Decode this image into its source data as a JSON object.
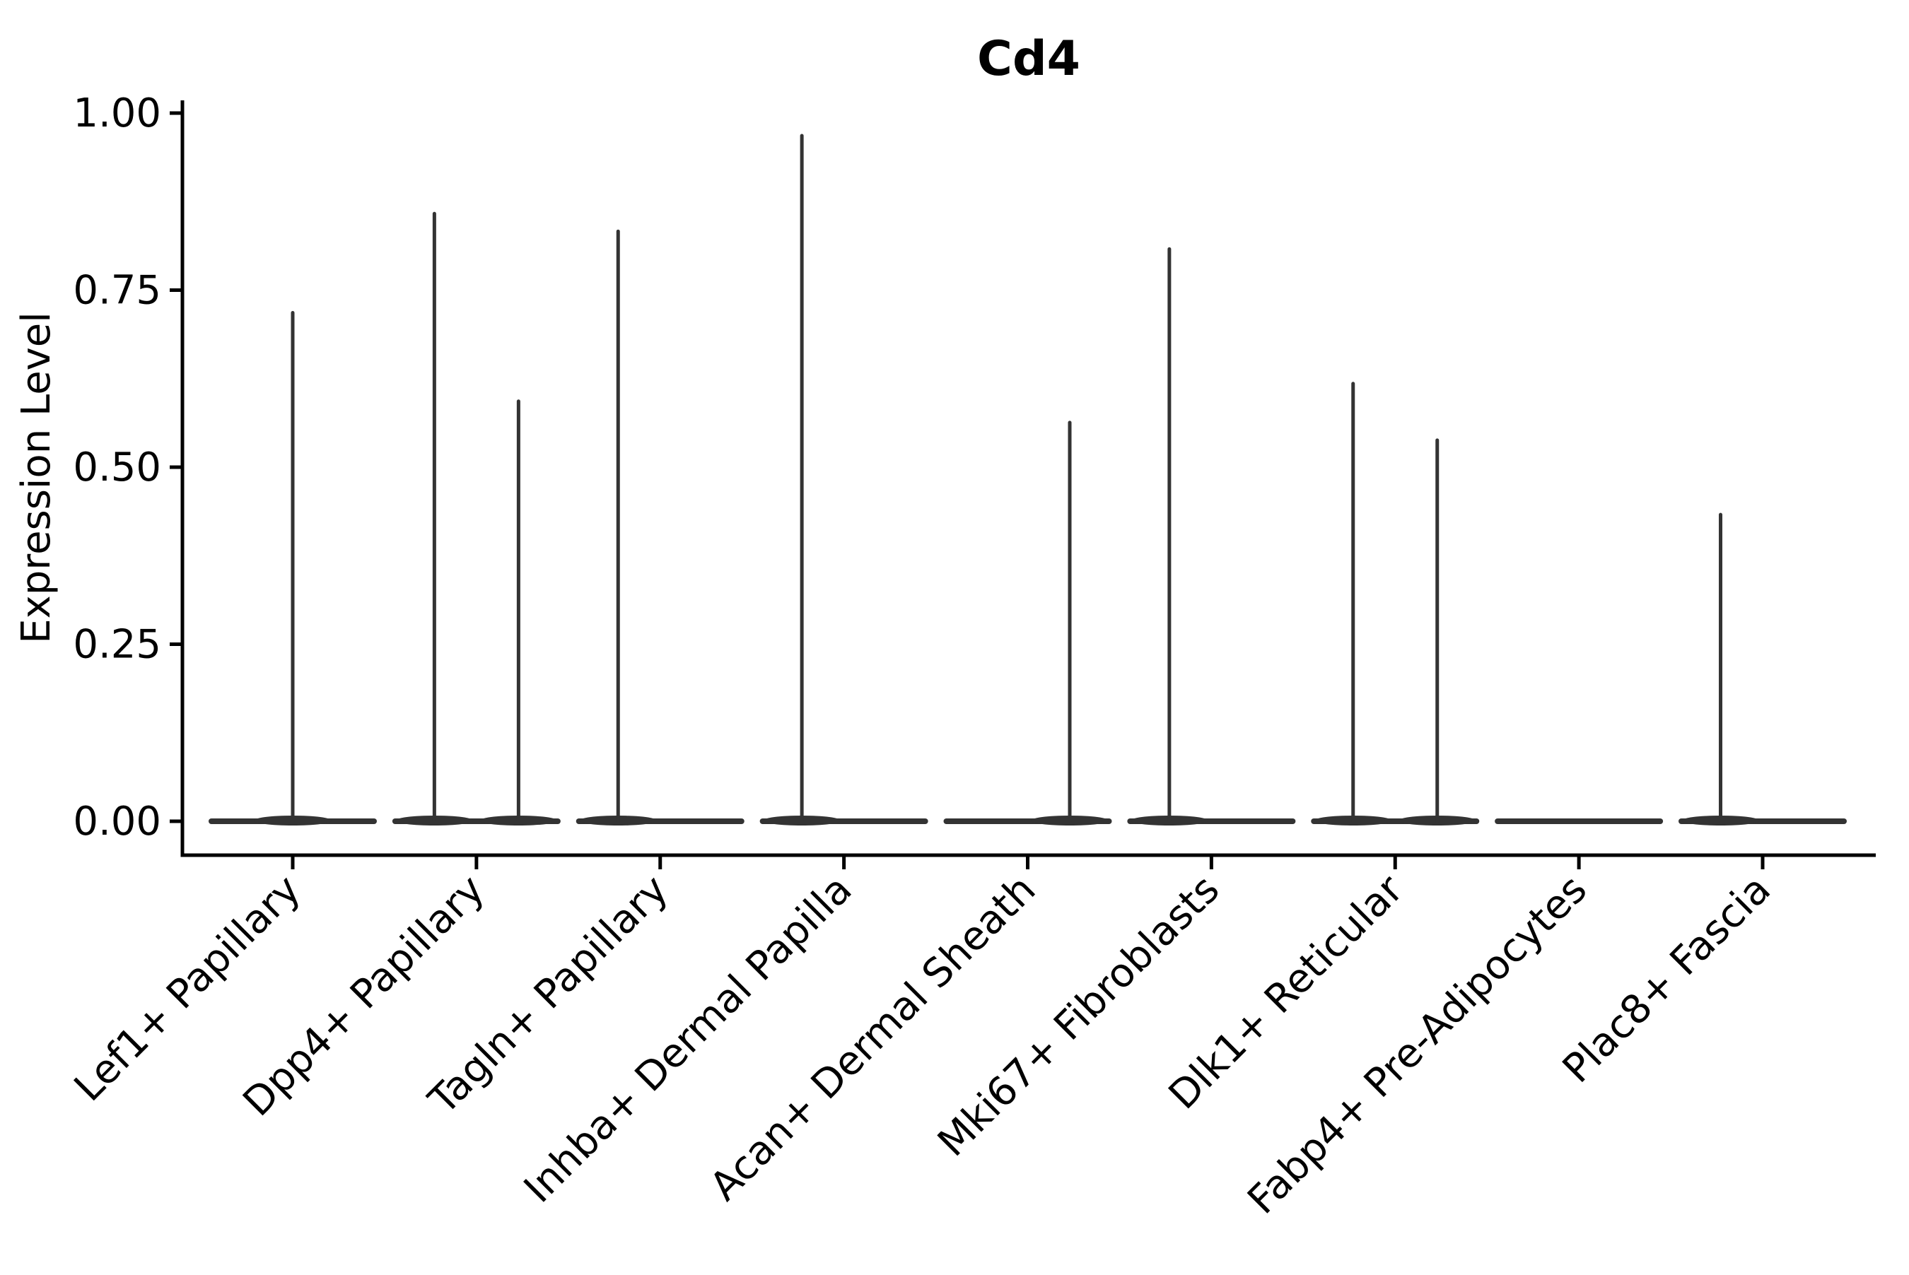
{
  "title": "Cd4",
  "colors": {
    "violin": "#333333",
    "axis": "#000000",
    "text": "#000000",
    "background": "#ffffff"
  },
  "chart_data": {
    "type": "violin",
    "title": "Cd4",
    "xlabel": "",
    "ylabel": "Expression Level",
    "ylim": [
      0,
      1.0
    ],
    "yticks": [
      "1.00",
      "0.75",
      "0.50",
      "0.25",
      "0.00"
    ],
    "ytick_values": [
      1.0,
      0.75,
      0.5,
      0.25,
      0.0
    ],
    "grid": false,
    "legend": false,
    "categories": [
      "Lef1+ Papillary",
      "Dpp4+ Papillary",
      "Tagln+ Papillary",
      "Inhba+ Dermal Papilla",
      "Acan+ Dermal Sheath",
      "Mki67+ Fibroblasts",
      "Dlk1+ Reticular",
      "Fabp4+ Pre-Adipocytes",
      "Plac8+ Fascia"
    ],
    "violins": [
      {
        "category": "Lef1+ Papillary",
        "baseline_value": 0.0,
        "spikes": [
          {
            "x_offset_frac": 0.0,
            "max": 0.72
          }
        ]
      },
      {
        "category": "Dpp4+ Papillary",
        "baseline_value": 0.0,
        "spikes": [
          {
            "x_offset_frac": -0.25,
            "max": 0.86
          },
          {
            "x_offset_frac": 0.25,
            "max": 0.595
          }
        ]
      },
      {
        "category": "Tagln+ Papillary",
        "baseline_value": 0.0,
        "spikes": [
          {
            "x_offset_frac": -0.25,
            "max": 0.835
          }
        ]
      },
      {
        "category": "Inhba+ Dermal Papilla",
        "baseline_value": 0.0,
        "spikes": [
          {
            "x_offset_frac": -0.25,
            "max": 0.97
          }
        ]
      },
      {
        "category": "Acan+ Dermal Sheath",
        "baseline_value": 0.0,
        "spikes": [
          {
            "x_offset_frac": 0.25,
            "max": 0.565
          }
        ]
      },
      {
        "category": "Mki67+ Fibroblasts",
        "baseline_value": 0.0,
        "spikes": [
          {
            "x_offset_frac": -0.25,
            "max": 0.81
          }
        ]
      },
      {
        "category": "Dlk1+ Reticular",
        "baseline_value": 0.0,
        "spikes": [
          {
            "x_offset_frac": -0.25,
            "max": 0.62
          },
          {
            "x_offset_frac": 0.25,
            "max": 0.54
          }
        ]
      },
      {
        "category": "Fabp4+ Pre-Adipocytes",
        "baseline_value": 0.0,
        "spikes": []
      },
      {
        "category": "Plac8+ Fascia",
        "baseline_value": 0.0,
        "spikes": [
          {
            "x_offset_frac": -0.25,
            "max": 0.435
          }
        ]
      }
    ]
  }
}
